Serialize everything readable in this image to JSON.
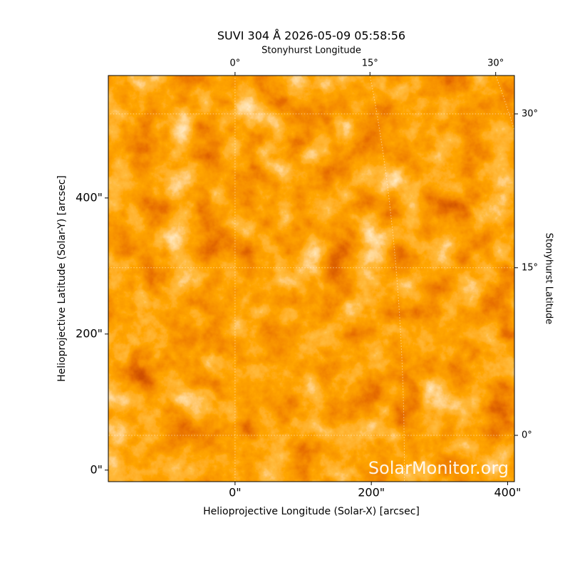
{
  "chart_data": {
    "type": "image",
    "title": "SUVI 304 Å 2026-05-09 05:58:56",
    "xlabel": "Helioprojective Longitude (Solar-X) [arcsec]",
    "ylabel": "Helioprojective Latitude (Solar-Y) [arcsec]",
    "x2label": "Stonyhurst Longitude",
    "y2label": "Stonyhurst Latitude",
    "xlim": [
      -186,
      410
    ],
    "ylim": [
      -17,
      580
    ],
    "xticks": [
      {
        "value": 0,
        "label": "0\""
      },
      {
        "value": 200,
        "label": "200\""
      },
      {
        "value": 400,
        "label": "400\""
      }
    ],
    "yticks": [
      {
        "value": 0,
        "label": "0\""
      },
      {
        "value": 200,
        "label": "200\""
      },
      {
        "value": 400,
        "label": "400\""
      }
    ],
    "x2ticks": [
      {
        "value": 0,
        "label": "0°"
      },
      {
        "value": 15,
        "label": "15°"
      },
      {
        "value": 30,
        "label": "30°"
      }
    ],
    "y2ticks": [
      {
        "value": 0,
        "label": "0°"
      },
      {
        "value": 15,
        "label": "15°"
      },
      {
        "value": 30,
        "label": "30°"
      }
    ],
    "watermark": "SolarMonitor.org"
  }
}
